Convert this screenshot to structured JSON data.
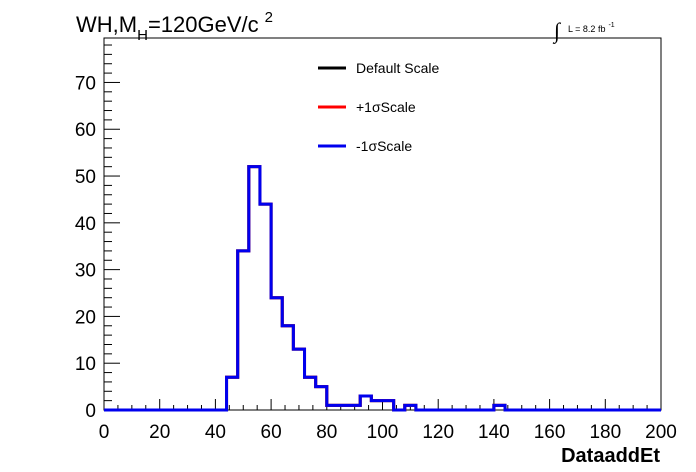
{
  "title": {
    "main": "WH,M",
    "sub": "H",
    "rest": "=120GeV/c",
    "sup": "2"
  },
  "lumi": {
    "integral": "∫",
    "text": "L = 8.2 fb",
    "sup": "-1"
  },
  "chart_data": {
    "type": "step",
    "xlabel": "DataaddEt",
    "ylabel": "",
    "xlim": [
      0,
      200
    ],
    "ylim": [
      0,
      79.5
    ],
    "x_ticks": [
      0,
      20,
      40,
      60,
      80,
      100,
      120,
      140,
      160,
      180,
      200
    ],
    "y_ticks": [
      0,
      10,
      20,
      30,
      40,
      50,
      60,
      70
    ],
    "bin_width": 4,
    "bin_edges_start": 0,
    "grid": false,
    "legend_position": "top-center",
    "series": [
      {
        "name": "Default Scale",
        "color": "#000000",
        "values": [
          0,
          0,
          0,
          0,
          0,
          0,
          0,
          0,
          0,
          0,
          0,
          7,
          34,
          52,
          44,
          24,
          18,
          13,
          7,
          5,
          1,
          1,
          1,
          3,
          2,
          2,
          0,
          1,
          0,
          0,
          0,
          0,
          0,
          0,
          0,
          1,
          0,
          0,
          0,
          0,
          0,
          0,
          0,
          0,
          0,
          0,
          0,
          0,
          0,
          0
        ]
      },
      {
        "name": "+1σScale",
        "color": "#ff0000",
        "values": [
          0,
          0,
          0,
          0,
          0,
          0,
          0,
          0,
          0,
          0,
          0,
          7,
          34,
          52,
          44,
          24,
          18,
          13,
          7,
          5,
          1,
          1,
          1,
          3,
          2,
          2,
          0,
          1,
          0,
          0,
          0,
          0,
          0,
          0,
          0,
          1,
          0,
          0,
          0,
          0,
          0,
          0,
          0,
          0,
          0,
          0,
          0,
          0,
          0,
          0
        ]
      },
      {
        "name": "-1σScale",
        "color": "#0000ee",
        "values": [
          0,
          0,
          0,
          0,
          0,
          0,
          0,
          0,
          0,
          0,
          0,
          7,
          34,
          52,
          44,
          24,
          18,
          13,
          7,
          5,
          1,
          1,
          1,
          3,
          2,
          2,
          0,
          1,
          0,
          0,
          0,
          0,
          0,
          0,
          0,
          1,
          0,
          0,
          0,
          0,
          0,
          0,
          0,
          0,
          0,
          0,
          0,
          0,
          0,
          0
        ]
      }
    ]
  }
}
